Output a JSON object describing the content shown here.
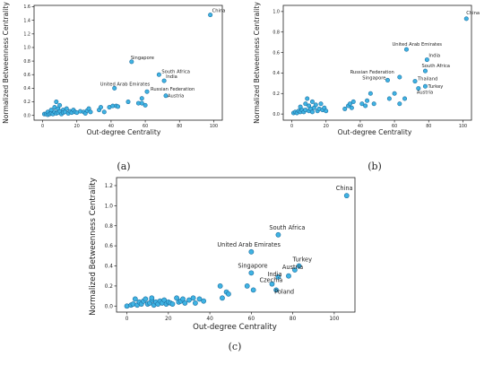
{
  "chart_data": [
    {
      "panel": "(a)",
      "type": "scatter",
      "xlabel": "Out-degree Centrality",
      "ylabel": "Normalized Betweenness Centrality",
      "xlim": [
        -5,
        105
      ],
      "ylim": [
        -0.07,
        1.62
      ],
      "xticks": [
        0,
        20,
        40,
        60,
        80,
        100
      ],
      "yticks": [
        0.0,
        0.2,
        0.4,
        0.6,
        0.8,
        1.0,
        1.2,
        1.4,
        1.6
      ],
      "points": [
        {
          "x": 98,
          "y": 1.48,
          "label": "China"
        },
        {
          "x": 52,
          "y": 0.79,
          "label": "Singapore"
        },
        {
          "x": 68,
          "y": 0.6,
          "label": "South Africa"
        },
        {
          "x": 71,
          "y": 0.51,
          "label": "India"
        },
        {
          "x": 42,
          "y": 0.4,
          "label": "United Arab Emirates"
        },
        {
          "x": 61,
          "y": 0.35,
          "label": "Russian Federation"
        },
        {
          "x": 72,
          "y": 0.29,
          "label": "Austria"
        },
        {
          "x": 1,
          "y": 0.02
        },
        {
          "x": 2,
          "y": 0.02
        },
        {
          "x": 3,
          "y": 0.01
        },
        {
          "x": 3,
          "y": 0.05
        },
        {
          "x": 4,
          "y": 0.02
        },
        {
          "x": 5,
          "y": 0.03
        },
        {
          "x": 5,
          "y": 0.08
        },
        {
          "x": 6,
          "y": 0.02
        },
        {
          "x": 7,
          "y": 0.05
        },
        {
          "x": 7,
          "y": 0.12
        },
        {
          "x": 8,
          "y": 0.03
        },
        {
          "x": 8,
          "y": 0.2
        },
        {
          "x": 9,
          "y": 0.1
        },
        {
          "x": 9,
          "y": 0.04
        },
        {
          "x": 10,
          "y": 0.06
        },
        {
          "x": 10,
          "y": 0.15
        },
        {
          "x": 11,
          "y": 0.02
        },
        {
          "x": 12,
          "y": 0.08
        },
        {
          "x": 12,
          "y": 0.04
        },
        {
          "x": 13,
          "y": 0.05
        },
        {
          "x": 14,
          "y": 0.1
        },
        {
          "x": 15,
          "y": 0.03
        },
        {
          "x": 16,
          "y": 0.06
        },
        {
          "x": 17,
          "y": 0.04
        },
        {
          "x": 18,
          "y": 0.08
        },
        {
          "x": 19,
          "y": 0.05
        },
        {
          "x": 20,
          "y": 0.04
        },
        {
          "x": 22,
          "y": 0.06
        },
        {
          "x": 24,
          "y": 0.05
        },
        {
          "x": 25,
          "y": 0.03
        },
        {
          "x": 26,
          "y": 0.07
        },
        {
          "x": 27,
          "y": 0.1
        },
        {
          "x": 28,
          "y": 0.05
        },
        {
          "x": 33,
          "y": 0.08
        },
        {
          "x": 34,
          "y": 0.12
        },
        {
          "x": 36,
          "y": 0.05
        },
        {
          "x": 39,
          "y": 0.12
        },
        {
          "x": 41,
          "y": 0.14
        },
        {
          "x": 43,
          "y": 0.14
        },
        {
          "x": 44,
          "y": 0.13
        },
        {
          "x": 50,
          "y": 0.2
        },
        {
          "x": 56,
          "y": 0.18
        },
        {
          "x": 58,
          "y": 0.18
        },
        {
          "x": 58,
          "y": 0.25
        },
        {
          "x": 60,
          "y": 0.15
        }
      ]
    },
    {
      "panel": "(b)",
      "type": "scatter",
      "xlabel": "Out-degree Centrality",
      "ylabel": "Normalized Betweenness Centrality",
      "xlim": [
        -5,
        105
      ],
      "ylim": [
        -0.06,
        1.06
      ],
      "xticks": [
        0,
        20,
        40,
        60,
        80,
        100
      ],
      "yticks": [
        0.0,
        0.2,
        0.4,
        0.6,
        0.8,
        1.0
      ],
      "points": [
        {
          "x": 102,
          "y": 0.93,
          "label": "China"
        },
        {
          "x": 67,
          "y": 0.63,
          "label": "United Arab Emirates"
        },
        {
          "x": 79,
          "y": 0.53,
          "label": "India"
        },
        {
          "x": 78,
          "y": 0.42,
          "label": "South Africa"
        },
        {
          "x": 56,
          "y": 0.33,
          "label": "Singapore"
        },
        {
          "x": 63,
          "y": 0.36,
          "label": "Russian Federation"
        },
        {
          "x": 72,
          "y": 0.32,
          "label": "Thailand"
        },
        {
          "x": 78,
          "y": 0.27,
          "label": "Turkey"
        },
        {
          "x": 74,
          "y": 0.25,
          "label": "Austria"
        },
        {
          "x": 1,
          "y": 0.01
        },
        {
          "x": 2,
          "y": 0.02
        },
        {
          "x": 3,
          "y": 0.01
        },
        {
          "x": 4,
          "y": 0.03
        },
        {
          "x": 5,
          "y": 0.02
        },
        {
          "x": 5,
          "y": 0.07
        },
        {
          "x": 6,
          "y": 0.04
        },
        {
          "x": 7,
          "y": 0.02
        },
        {
          "x": 8,
          "y": 0.1
        },
        {
          "x": 8,
          "y": 0.04
        },
        {
          "x": 9,
          "y": 0.15
        },
        {
          "x": 10,
          "y": 0.03
        },
        {
          "x": 10,
          "y": 0.08
        },
        {
          "x": 11,
          "y": 0.05
        },
        {
          "x": 12,
          "y": 0.12
        },
        {
          "x": 12,
          "y": 0.02
        },
        {
          "x": 13,
          "y": 0.06
        },
        {
          "x": 14,
          "y": 0.09
        },
        {
          "x": 15,
          "y": 0.03
        },
        {
          "x": 16,
          "y": 0.05
        },
        {
          "x": 17,
          "y": 0.1
        },
        {
          "x": 18,
          "y": 0.04
        },
        {
          "x": 19,
          "y": 0.06
        },
        {
          "x": 20,
          "y": 0.03
        },
        {
          "x": 31,
          "y": 0.05
        },
        {
          "x": 33,
          "y": 0.08
        },
        {
          "x": 34,
          "y": 0.1
        },
        {
          "x": 35,
          "y": 0.06
        },
        {
          "x": 36,
          "y": 0.12
        },
        {
          "x": 41,
          "y": 0.1
        },
        {
          "x": 43,
          "y": 0.08
        },
        {
          "x": 44,
          "y": 0.13
        },
        {
          "x": 46,
          "y": 0.2
        },
        {
          "x": 48,
          "y": 0.1
        },
        {
          "x": 57,
          "y": 0.15
        },
        {
          "x": 60,
          "y": 0.2
        },
        {
          "x": 63,
          "y": 0.1
        },
        {
          "x": 66,
          "y": 0.15
        }
      ]
    },
    {
      "panel": "(c)",
      "type": "scatter",
      "xlabel": "Out-degree Centrality",
      "ylabel": "Normalized Betweenness Centrality",
      "xlim": [
        -5,
        110
      ],
      "ylim": [
        -0.06,
        1.28
      ],
      "xticks": [
        0,
        20,
        40,
        60,
        80,
        100
      ],
      "yticks": [
        0.0,
        0.2,
        0.4,
        0.6,
        0.8,
        1.0,
        1.2
      ],
      "points": [
        {
          "x": 106,
          "y": 1.1,
          "label": "China"
        },
        {
          "x": 73,
          "y": 0.71,
          "label": "South Africa"
        },
        {
          "x": 60,
          "y": 0.54,
          "label": "United Arab Emirates"
        },
        {
          "x": 83,
          "y": 0.4,
          "label": "Turkey"
        },
        {
          "x": 81,
          "y": 0.36,
          "label": "Austria"
        },
        {
          "x": 60,
          "y": 0.33,
          "label": "Singapore"
        },
        {
          "x": 73,
          "y": 0.29,
          "label": "India"
        },
        {
          "x": 70,
          "y": 0.22,
          "label": "Czechia"
        },
        {
          "x": 72,
          "y": 0.16,
          "label": "Poland"
        },
        {
          "x": 0,
          "y": 0.0
        },
        {
          "x": 2,
          "y": 0.01
        },
        {
          "x": 3,
          "y": 0.02
        },
        {
          "x": 4,
          "y": 0.07
        },
        {
          "x": 5,
          "y": 0.01
        },
        {
          "x": 6,
          "y": 0.04
        },
        {
          "x": 7,
          "y": 0.02
        },
        {
          "x": 8,
          "y": 0.05
        },
        {
          "x": 9,
          "y": 0.07
        },
        {
          "x": 10,
          "y": 0.02
        },
        {
          "x": 11,
          "y": 0.03
        },
        {
          "x": 12,
          "y": 0.06
        },
        {
          "x": 12,
          "y": 0.08
        },
        {
          "x": 13,
          "y": 0.01
        },
        {
          "x": 14,
          "y": 0.04
        },
        {
          "x": 15,
          "y": 0.02
        },
        {
          "x": 16,
          "y": 0.05
        },
        {
          "x": 17,
          "y": 0.03
        },
        {
          "x": 18,
          "y": 0.06
        },
        {
          "x": 19,
          "y": 0.02
        },
        {
          "x": 20,
          "y": 0.04
        },
        {
          "x": 21,
          "y": 0.03
        },
        {
          "x": 22,
          "y": 0.02
        },
        {
          "x": 24,
          "y": 0.08
        },
        {
          "x": 25,
          "y": 0.04
        },
        {
          "x": 26,
          "y": 0.05
        },
        {
          "x": 27,
          "y": 0.07
        },
        {
          "x": 28,
          "y": 0.03
        },
        {
          "x": 30,
          "y": 0.06
        },
        {
          "x": 32,
          "y": 0.08
        },
        {
          "x": 33,
          "y": 0.03
        },
        {
          "x": 35,
          "y": 0.07
        },
        {
          "x": 37,
          "y": 0.05
        },
        {
          "x": 45,
          "y": 0.2
        },
        {
          "x": 46,
          "y": 0.08
        },
        {
          "x": 48,
          "y": 0.14
        },
        {
          "x": 49,
          "y": 0.12
        },
        {
          "x": 58,
          "y": 0.2
        },
        {
          "x": 61,
          "y": 0.16
        },
        {
          "x": 78,
          "y": 0.3
        }
      ]
    }
  ]
}
